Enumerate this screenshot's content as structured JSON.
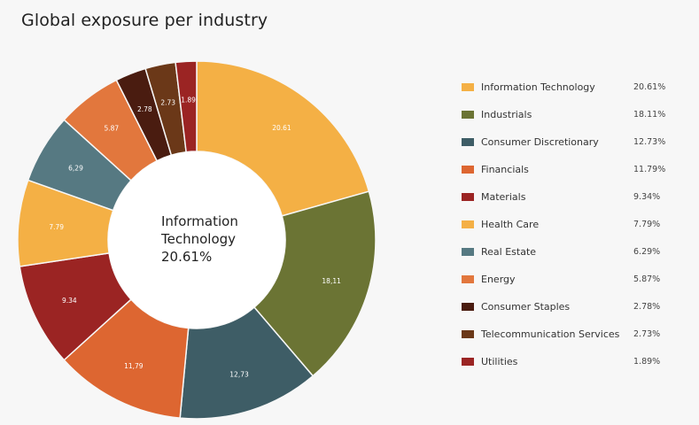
{
  "title": "Global exposure per industry",
  "center": {
    "line1": "Information",
    "line2": "Technology",
    "line3": "20.61%"
  },
  "chart_data": {
    "type": "pie",
    "donut": true,
    "title": "Global exposure per industry",
    "legend_position": "right",
    "categories": [
      "Information Technology",
      "Industrials",
      "Consumer Discretionary",
      "Financials",
      "Materials",
      "Health Care",
      "Real Estate",
      "Energy",
      "Consumer Staples",
      "Telecommunication Services",
      "Utilities"
    ],
    "values": [
      20.61,
      18.11,
      12.73,
      11.79,
      9.34,
      7.79,
      6.29,
      5.87,
      2.78,
      2.73,
      1.89
    ],
    "slice_labels": [
      "20.61",
      "18,11",
      "12,73",
      "11,79",
      "9.34",
      "7.79",
      "6,29",
      "5.87",
      "2.78",
      "2.73",
      "1.89"
    ],
    "legend_values": [
      "20.61%",
      "18.11%",
      "12.73%",
      "11.79%",
      "9.34%",
      "7.79%",
      "6.29%",
      "5.87%",
      "2.78%",
      "2.73%",
      "1.89%"
    ],
    "colors": [
      "#f4b045",
      "#6b7434",
      "#3e5d66",
      "#dd6631",
      "#9b2423",
      "#f4b045",
      "#567982",
      "#e2773d",
      "#4a1c10",
      "#6b3818",
      "#9b2423"
    ]
  }
}
